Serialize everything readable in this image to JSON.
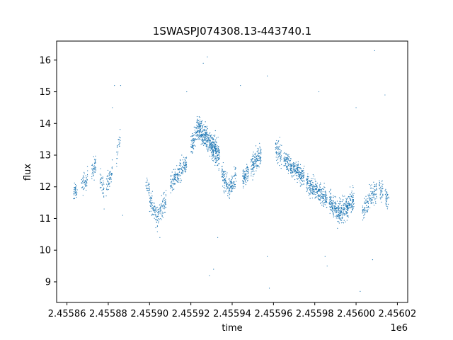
{
  "chart_data": {
    "type": "scatter",
    "title": "1SWASPJ074308.13-443740.1",
    "xlabel": "time",
    "ylabel": "flux",
    "x_offset_label": "1e6",
    "xlim": [
      2.455855,
      2.456025
    ],
    "ylim": [
      8.35,
      16.6
    ],
    "xticks": [
      2.45586,
      2.45588,
      2.4559,
      2.45592,
      2.45594,
      2.45596,
      2.45598,
      2.456,
      2.45602
    ],
    "xtick_labels": [
      "2.45586",
      "2.45588",
      "2.45590",
      "2.45592",
      "2.45594",
      "2.45596",
      "2.45598",
      "2.45600",
      "2.45602"
    ],
    "yticks": [
      9,
      10,
      11,
      12,
      13,
      14,
      15,
      16
    ],
    "ytick_labels": [
      "9",
      "10",
      "11",
      "12",
      "13",
      "14",
      "15",
      "16"
    ],
    "grid": false,
    "series_color": "#1f77b4",
    "segments": [
      {
        "x0": 2.455863,
        "x1": 2.455865,
        "y0": 11.8,
        "y1": 11.9,
        "spread": 0.25,
        "n": 40
      },
      {
        "x0": 2.455867,
        "x1": 2.45587,
        "y0": 12.0,
        "y1": 12.3,
        "spread": 0.3,
        "n": 55
      },
      {
        "x0": 2.455872,
        "x1": 2.455874,
        "y0": 12.4,
        "y1": 12.7,
        "spread": 0.35,
        "n": 45
      },
      {
        "x0": 2.455876,
        "x1": 2.455878,
        "y0": 12.3,
        "y1": 12.0,
        "spread": 0.3,
        "n": 35
      },
      {
        "x0": 2.455879,
        "x1": 2.455882,
        "y0": 12.0,
        "y1": 12.5,
        "spread": 0.35,
        "n": 55
      },
      {
        "x0": 2.455884,
        "x1": 2.455886,
        "y0": 13.0,
        "y1": 13.7,
        "spread": 0.35,
        "n": 25
      },
      {
        "x0": 2.455898,
        "x1": 2.4559,
        "y0": 12.1,
        "y1": 11.9,
        "spread": 0.3,
        "n": 30
      },
      {
        "x0": 2.4559,
        "x1": 2.455904,
        "y0": 11.6,
        "y1": 11.0,
        "spread": 0.35,
        "n": 90
      },
      {
        "x0": 2.455904,
        "x1": 2.455908,
        "y0": 11.1,
        "y1": 11.6,
        "spread": 0.35,
        "n": 80
      },
      {
        "x0": 2.45591,
        "x1": 2.455914,
        "y0": 12.0,
        "y1": 12.4,
        "spread": 0.3,
        "n": 90
      },
      {
        "x0": 2.455914,
        "x1": 2.455918,
        "y0": 12.4,
        "y1": 12.8,
        "spread": 0.35,
        "n": 90
      },
      {
        "x0": 2.45592,
        "x1": 2.455923,
        "y0": 13.2,
        "y1": 13.8,
        "spread": 0.3,
        "n": 80
      },
      {
        "x0": 2.455923,
        "x1": 2.455927,
        "y0": 13.9,
        "y1": 13.6,
        "spread": 0.35,
        "n": 170
      },
      {
        "x0": 2.455927,
        "x1": 2.455931,
        "y0": 13.6,
        "y1": 13.2,
        "spread": 0.4,
        "n": 190
      },
      {
        "x0": 2.455931,
        "x1": 2.455934,
        "y0": 13.3,
        "y1": 12.9,
        "spread": 0.4,
        "n": 130
      },
      {
        "x0": 2.455935,
        "x1": 2.455939,
        "y0": 12.4,
        "y1": 11.9,
        "spread": 0.35,
        "n": 110
      },
      {
        "x0": 2.455939,
        "x1": 2.455942,
        "y0": 12.0,
        "y1": 12.4,
        "spread": 0.3,
        "n": 70
      },
      {
        "x0": 2.455945,
        "x1": 2.455948,
        "y0": 12.2,
        "y1": 12.5,
        "spread": 0.3,
        "n": 90
      },
      {
        "x0": 2.455949,
        "x1": 2.455954,
        "y0": 12.6,
        "y1": 13.0,
        "spread": 0.35,
        "n": 150
      },
      {
        "x0": 2.455961,
        "x1": 2.455964,
        "y0": 13.2,
        "y1": 13.0,
        "spread": 0.35,
        "n": 70
      },
      {
        "x0": 2.455965,
        "x1": 2.455969,
        "y0": 12.9,
        "y1": 12.6,
        "spread": 0.3,
        "n": 110
      },
      {
        "x0": 2.455969,
        "x1": 2.455975,
        "y0": 12.6,
        "y1": 12.3,
        "spread": 0.3,
        "n": 170
      },
      {
        "x0": 2.455976,
        "x1": 2.455981,
        "y0": 12.1,
        "y1": 11.9,
        "spread": 0.3,
        "n": 140
      },
      {
        "x0": 2.455981,
        "x1": 2.455986,
        "y0": 11.9,
        "y1": 11.6,
        "spread": 0.3,
        "n": 140
      },
      {
        "x0": 2.455987,
        "x1": 2.455991,
        "y0": 11.6,
        "y1": 11.2,
        "spread": 0.35,
        "n": 130
      },
      {
        "x0": 2.455991,
        "x1": 2.455996,
        "y0": 11.1,
        "y1": 11.4,
        "spread": 0.4,
        "n": 170
      },
      {
        "x0": 2.455996,
        "x1": 2.455999,
        "y0": 11.4,
        "y1": 11.6,
        "spread": 0.35,
        "n": 90
      },
      {
        "x0": 2.456003,
        "x1": 2.456006,
        "y0": 11.2,
        "y1": 11.5,
        "spread": 0.3,
        "n": 60
      },
      {
        "x0": 2.456006,
        "x1": 2.45601,
        "y0": 11.7,
        "y1": 11.9,
        "spread": 0.35,
        "n": 80
      },
      {
        "x0": 2.456011,
        "x1": 2.456013,
        "y0": 12.0,
        "y1": 11.8,
        "spread": 0.35,
        "n": 40
      },
      {
        "x0": 2.456014,
        "x1": 2.456016,
        "y0": 11.7,
        "y1": 11.6,
        "spread": 0.25,
        "n": 35
      }
    ],
    "outliers": [
      {
        "x": 2.455926,
        "y": 15.9
      },
      {
        "x": 2.455928,
        "y": 16.1
      },
      {
        "x": 2.455933,
        "y": 10.4
      },
      {
        "x": 2.455929,
        "y": 9.2
      },
      {
        "x": 2.455931,
        "y": 9.4
      },
      {
        "x": 2.455957,
        "y": 15.5
      },
      {
        "x": 2.455957,
        "y": 9.8
      },
      {
        "x": 2.455958,
        "y": 8.8
      },
      {
        "x": 2.455982,
        "y": 15.0
      },
      {
        "x": 2.455985,
        "y": 9.8
      },
      {
        "x": 2.455986,
        "y": 9.5
      },
      {
        "x": 2.456,
        "y": 14.5
      },
      {
        "x": 2.456002,
        "y": 8.7
      },
      {
        "x": 2.456009,
        "y": 16.3
      },
      {
        "x": 2.456014,
        "y": 14.9
      },
      {
        "x": 2.456008,
        "y": 9.7
      },
      {
        "x": 2.455883,
        "y": 15.2
      },
      {
        "x": 2.455886,
        "y": 15.2
      },
      {
        "x": 2.455882,
        "y": 14.5
      },
      {
        "x": 2.455918,
        "y": 15.0
      },
      {
        "x": 2.455944,
        "y": 15.2
      },
      {
        "x": 2.455905,
        "y": 10.4
      },
      {
        "x": 2.455887,
        "y": 11.1
      },
      {
        "x": 2.455878,
        "y": 11.3
      }
    ]
  }
}
